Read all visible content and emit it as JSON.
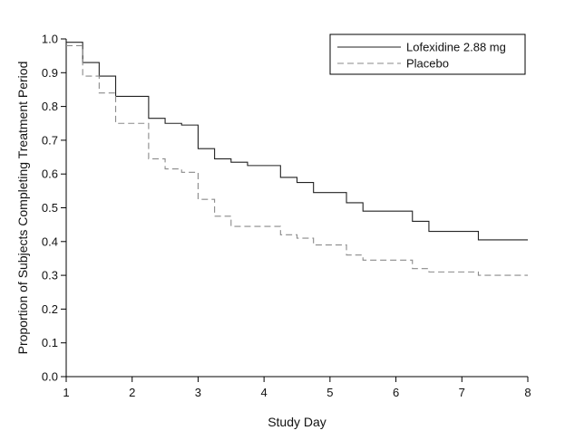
{
  "chart_data": {
    "type": "line",
    "title": "",
    "xlabel": "Study Day",
    "ylabel": "Proportion of Subjects Completing Treatment Period",
    "xlim": [
      1,
      8
    ],
    "ylim": [
      0,
      1.0
    ],
    "x_ticks": [
      "1",
      "2",
      "3",
      "4",
      "5",
      "6",
      "7",
      "8"
    ],
    "y_ticks": [
      "0.0",
      "0.1",
      "0.2",
      "0.3",
      "0.4",
      "0.5",
      "0.6",
      "0.7",
      "0.8",
      "0.9",
      "1.0"
    ],
    "grid": false,
    "legend_position": "top-right",
    "series": [
      {
        "name": "Lofexidine 2.88 mg",
        "style": "solid",
        "color": "#222222",
        "x": [
          1,
          1.25,
          1.5,
          1.75,
          2.25,
          2.5,
          2.75,
          3.0,
          3.25,
          3.5,
          3.75,
          4.25,
          4.5,
          4.75,
          5.25,
          5.5,
          6.25,
          6.5,
          7.25,
          8.0
        ],
        "y": [
          0.99,
          0.93,
          0.89,
          0.83,
          0.765,
          0.75,
          0.745,
          0.675,
          0.645,
          0.635,
          0.625,
          0.59,
          0.575,
          0.545,
          0.515,
          0.49,
          0.46,
          0.43,
          0.405,
          0.405
        ]
      },
      {
        "name": "Placebo",
        "style": "dashed",
        "color": "#8a8a8a",
        "x": [
          1,
          1.25,
          1.5,
          1.75,
          2.25,
          2.5,
          2.75,
          3.0,
          3.25,
          3.5,
          4.25,
          4.5,
          4.75,
          5.25,
          5.5,
          6.25,
          6.5,
          7.25,
          8.0
        ],
        "y": [
          0.98,
          0.89,
          0.84,
          0.75,
          0.645,
          0.615,
          0.605,
          0.525,
          0.475,
          0.445,
          0.42,
          0.41,
          0.39,
          0.36,
          0.345,
          0.32,
          0.31,
          0.3,
          0.3
        ]
      }
    ]
  }
}
